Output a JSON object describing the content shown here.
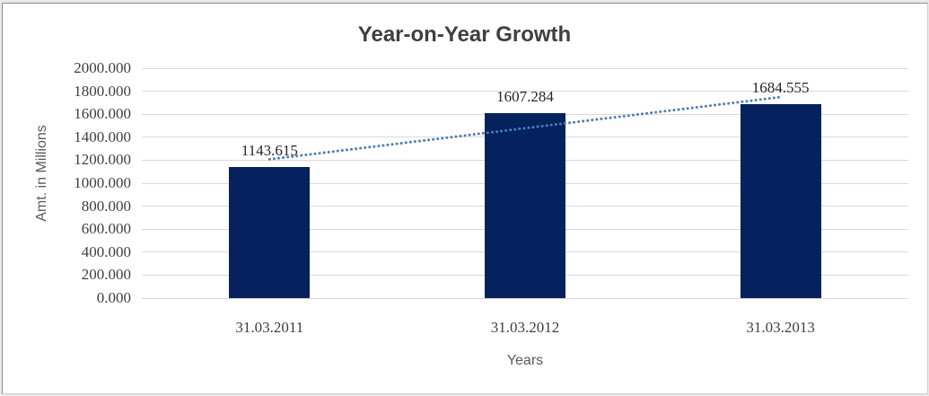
{
  "chart_data": {
    "type": "bar",
    "title": "Year-on-Year Growth",
    "xlabel": "Years",
    "ylabel": "Amt. in Millions",
    "categories": [
      "31.03.2011",
      "31.03.2012",
      "31.03.2013"
    ],
    "values": [
      1143.615,
      1607.284,
      1684.555
    ],
    "data_labels": [
      "1143.615",
      "1607.284",
      "1684.555"
    ],
    "ylim": [
      0,
      2000
    ],
    "ytick_step": 200,
    "ytick_labels": [
      "0.000",
      "200.000",
      "400.000",
      "600.000",
      "800.000",
      "1000.000",
      "1200.000",
      "1400.000",
      "1600.000",
      "1800.000",
      "2000.000"
    ],
    "grid": true,
    "legend": "none",
    "trendline": {
      "style": "dotted",
      "fit_values": [
        1208.0,
        1749.0
      ],
      "color": "#4a7ebc"
    },
    "colors": {
      "bar": "#05215e",
      "gridline": "#d9d9d9",
      "title_text": "#3f3f3f",
      "tick_text": "#404040",
      "axis_title_text": "#595959",
      "plot_background": "#ffffff"
    }
  }
}
